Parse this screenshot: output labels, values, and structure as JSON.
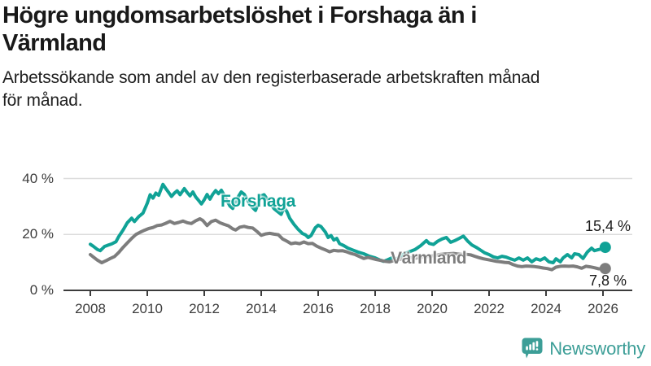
{
  "header": {
    "title_lines": [
      "Högre ungdomsarbetslöshet i Forshaga än i",
      "Värmland"
    ],
    "subtitle_lines": [
      "Arbetssökande som andel av den registerbaserade arbetskraften månad",
      "för månad."
    ]
  },
  "footer": {
    "brand": "Newsworthy",
    "brand_color": "#3c9e97"
  },
  "chart_data": {
    "type": "line",
    "title": "Högre ungdomsarbetslöshet i Forshaga än i Värmland",
    "subtitle": "Arbetssökande som andel av den registerbaserade arbetskraften månad för månad.",
    "unit": "%",
    "grid": true,
    "legend_position": "inline-labels",
    "x_axis": {
      "ticks": [
        2008,
        2010,
        2012,
        2014,
        2016,
        2018,
        2020,
        2022,
        2024,
        2026
      ],
      "range": [
        2008,
        2026.2
      ]
    },
    "y_axis": {
      "ticks": [
        {
          "value": 0,
          "label": "0 %"
        },
        {
          "value": 20,
          "label": "20 %"
        },
        {
          "value": 40,
          "label": "40 %"
        }
      ],
      "range": [
        0,
        43
      ]
    },
    "colors": {
      "axis": "#3c3c3c",
      "grid": "#dcdcdc"
    },
    "series": [
      {
        "name": "Forshaga",
        "color": "#10a296",
        "end_label": "15,4 %",
        "end_value": 15.4,
        "points": [
          [
            2008.0,
            16.5
          ],
          [
            2008.1,
            15.8
          ],
          [
            2008.25,
            14.6
          ],
          [
            2008.35,
            14.2
          ],
          [
            2008.5,
            15.7
          ],
          [
            2008.6,
            16.1
          ],
          [
            2008.75,
            16.6
          ],
          [
            2008.9,
            17.4
          ],
          [
            2009.0,
            19.3
          ],
          [
            2009.15,
            21.6
          ],
          [
            2009.3,
            24.2
          ],
          [
            2009.45,
            25.8
          ],
          [
            2009.55,
            24.6
          ],
          [
            2009.7,
            26.4
          ],
          [
            2009.85,
            27.6
          ],
          [
            2010.0,
            31.2
          ],
          [
            2010.1,
            34.2
          ],
          [
            2010.2,
            33.0
          ],
          [
            2010.3,
            34.8
          ],
          [
            2010.4,
            34.0
          ],
          [
            2010.55,
            37.9
          ],
          [
            2010.65,
            36.4
          ],
          [
            2010.75,
            35.0
          ],
          [
            2010.85,
            33.6
          ],
          [
            2010.95,
            34.8
          ],
          [
            2011.05,
            35.6
          ],
          [
            2011.15,
            34.2
          ],
          [
            2011.3,
            36.4
          ],
          [
            2011.4,
            35.0
          ],
          [
            2011.5,
            33.8
          ],
          [
            2011.6,
            35.2
          ],
          [
            2011.7,
            33.4
          ],
          [
            2011.8,
            32.2
          ],
          [
            2011.9,
            30.9
          ],
          [
            2012.0,
            32.4
          ],
          [
            2012.1,
            34.3
          ],
          [
            2012.2,
            32.6
          ],
          [
            2012.3,
            34.4
          ],
          [
            2012.4,
            35.7
          ],
          [
            2012.5,
            34.6
          ],
          [
            2012.6,
            35.8
          ],
          [
            2012.7,
            34.0
          ],
          [
            2012.8,
            32.0
          ],
          [
            2012.9,
            30.2
          ],
          [
            2013.0,
            29.3
          ],
          [
            2013.1,
            31.4
          ],
          [
            2013.2,
            33.6
          ],
          [
            2013.3,
            35.2
          ],
          [
            2013.4,
            34.4
          ],
          [
            2013.5,
            32.6
          ],
          [
            2013.6,
            30.8
          ],
          [
            2013.7,
            29.6
          ],
          [
            2013.8,
            28.6
          ],
          [
            2013.9,
            31.2
          ],
          [
            2014.0,
            33.8
          ],
          [
            2014.1,
            34.2
          ],
          [
            2014.2,
            32.8
          ],
          [
            2014.3,
            31.4
          ],
          [
            2014.45,
            29.2
          ],
          [
            2014.6,
            28.0
          ],
          [
            2014.7,
            27.2
          ],
          [
            2014.8,
            29.6
          ],
          [
            2014.9,
            28.2
          ],
          [
            2015.0,
            25.8
          ],
          [
            2015.15,
            23.6
          ],
          [
            2015.3,
            21.8
          ],
          [
            2015.45,
            20.3
          ],
          [
            2015.55,
            19.9
          ],
          [
            2015.65,
            18.9
          ],
          [
            2015.75,
            19.6
          ],
          [
            2015.9,
            22.4
          ],
          [
            2016.0,
            23.3
          ],
          [
            2016.1,
            22.8
          ],
          [
            2016.25,
            20.9
          ],
          [
            2016.35,
            18.9
          ],
          [
            2016.45,
            19.6
          ],
          [
            2016.55,
            18.0
          ],
          [
            2016.65,
            18.6
          ],
          [
            2016.75,
            16.7
          ],
          [
            2016.9,
            16.0
          ],
          [
            2017.05,
            15.1
          ],
          [
            2017.2,
            14.5
          ],
          [
            2017.4,
            13.7
          ],
          [
            2017.6,
            13.1
          ],
          [
            2017.8,
            12.2
          ],
          [
            2018.0,
            11.6
          ],
          [
            2018.15,
            10.9
          ],
          [
            2018.3,
            10.4
          ],
          [
            2018.45,
            11.0
          ],
          [
            2018.6,
            11.7
          ],
          [
            2018.75,
            11.2
          ],
          [
            2018.9,
            12.4
          ],
          [
            2019.05,
            13.2
          ],
          [
            2019.2,
            13.8
          ],
          [
            2019.4,
            14.6
          ],
          [
            2019.6,
            16.0
          ],
          [
            2019.8,
            17.8
          ],
          [
            2019.9,
            16.8
          ],
          [
            2020.05,
            16.4
          ],
          [
            2020.2,
            17.6
          ],
          [
            2020.35,
            18.4
          ],
          [
            2020.5,
            18.9
          ],
          [
            2020.65,
            17.2
          ],
          [
            2020.8,
            17.8
          ],
          [
            2020.95,
            18.6
          ],
          [
            2021.1,
            19.4
          ],
          [
            2021.25,
            17.6
          ],
          [
            2021.4,
            16.2
          ],
          [
            2021.55,
            15.4
          ],
          [
            2021.7,
            14.4
          ],
          [
            2021.85,
            13.4
          ],
          [
            2022.0,
            12.8
          ],
          [
            2022.15,
            12.0
          ],
          [
            2022.3,
            11.6
          ],
          [
            2022.45,
            12.2
          ],
          [
            2022.6,
            11.9
          ],
          [
            2022.75,
            11.3
          ],
          [
            2022.9,
            10.8
          ],
          [
            2023.05,
            11.6
          ],
          [
            2023.2,
            10.8
          ],
          [
            2023.35,
            11.6
          ],
          [
            2023.5,
            10.2
          ],
          [
            2023.65,
            11.3
          ],
          [
            2023.8,
            10.8
          ],
          [
            2023.95,
            11.6
          ],
          [
            2024.1,
            10.2
          ],
          [
            2024.25,
            9.9
          ],
          [
            2024.35,
            11.3
          ],
          [
            2024.5,
            10.2
          ],
          [
            2024.6,
            11.6
          ],
          [
            2024.75,
            12.8
          ],
          [
            2024.9,
            11.6
          ],
          [
            2025.0,
            13.1
          ],
          [
            2025.15,
            12.8
          ],
          [
            2025.3,
            11.4
          ],
          [
            2025.45,
            13.7
          ],
          [
            2025.6,
            15.1
          ],
          [
            2025.7,
            14.2
          ],
          [
            2025.85,
            14.6
          ],
          [
            2026.0,
            14.9
          ],
          [
            2026.08,
            15.4
          ]
        ]
      },
      {
        "name": "Värmland",
        "color": "#7d7d7d",
        "end_label": "7,8 %",
        "end_value": 7.8,
        "points": [
          [
            2008.0,
            12.8
          ],
          [
            2008.1,
            12.0
          ],
          [
            2008.25,
            10.8
          ],
          [
            2008.4,
            9.9
          ],
          [
            2008.55,
            10.6
          ],
          [
            2008.7,
            11.4
          ],
          [
            2008.85,
            12.1
          ],
          [
            2009.0,
            13.6
          ],
          [
            2009.15,
            15.4
          ],
          [
            2009.3,
            17.0
          ],
          [
            2009.45,
            18.6
          ],
          [
            2009.6,
            20.0
          ],
          [
            2009.75,
            20.8
          ],
          [
            2009.9,
            21.5
          ],
          [
            2010.05,
            22.1
          ],
          [
            2010.2,
            22.5
          ],
          [
            2010.35,
            23.2
          ],
          [
            2010.5,
            23.4
          ],
          [
            2010.65,
            24.0
          ],
          [
            2010.8,
            24.7
          ],
          [
            2010.95,
            23.9
          ],
          [
            2011.1,
            24.3
          ],
          [
            2011.25,
            24.8
          ],
          [
            2011.4,
            24.2
          ],
          [
            2011.55,
            23.9
          ],
          [
            2011.7,
            24.9
          ],
          [
            2011.85,
            25.6
          ],
          [
            2011.95,
            25.0
          ],
          [
            2012.1,
            23.2
          ],
          [
            2012.25,
            24.6
          ],
          [
            2012.4,
            25.1
          ],
          [
            2012.55,
            24.2
          ],
          [
            2012.7,
            23.6
          ],
          [
            2012.85,
            23.1
          ],
          [
            2013.0,
            22.0
          ],
          [
            2013.1,
            21.6
          ],
          [
            2013.25,
            22.6
          ],
          [
            2013.4,
            22.9
          ],
          [
            2013.55,
            22.5
          ],
          [
            2013.7,
            22.3
          ],
          [
            2013.85,
            21.1
          ],
          [
            2014.0,
            19.7
          ],
          [
            2014.15,
            20.2
          ],
          [
            2014.3,
            20.4
          ],
          [
            2014.45,
            20.1
          ],
          [
            2014.6,
            19.9
          ],
          [
            2014.75,
            18.4
          ],
          [
            2014.9,
            17.6
          ],
          [
            2015.05,
            16.7
          ],
          [
            2015.2,
            17.0
          ],
          [
            2015.35,
            16.7
          ],
          [
            2015.5,
            17.3
          ],
          [
            2015.65,
            16.7
          ],
          [
            2015.8,
            16.8
          ],
          [
            2015.95,
            15.8
          ],
          [
            2016.1,
            15.1
          ],
          [
            2016.25,
            14.5
          ],
          [
            2016.4,
            13.8
          ],
          [
            2016.55,
            14.3
          ],
          [
            2016.7,
            14.1
          ],
          [
            2016.85,
            14.2
          ],
          [
            2017.0,
            13.8
          ],
          [
            2017.15,
            13.2
          ],
          [
            2017.3,
            12.8
          ],
          [
            2017.45,
            12.1
          ],
          [
            2017.6,
            11.4
          ],
          [
            2017.75,
            11.8
          ],
          [
            2017.9,
            11.4
          ],
          [
            2018.05,
            11.0
          ],
          [
            2018.2,
            10.7
          ],
          [
            2018.35,
            10.4
          ],
          [
            2018.5,
            10.2
          ],
          [
            2018.65,
            10.6
          ],
          [
            2018.8,
            10.9
          ],
          [
            2018.95,
            11.3
          ],
          [
            2019.1,
            11.4
          ],
          [
            2019.25,
            11.7
          ],
          [
            2019.4,
            11.5
          ],
          [
            2019.55,
            11.8
          ],
          [
            2019.7,
            12.0
          ],
          [
            2019.85,
            12.1
          ],
          [
            2020.0,
            12.3
          ],
          [
            2020.15,
            12.6
          ],
          [
            2020.3,
            12.9
          ],
          [
            2020.45,
            13.0
          ],
          [
            2020.6,
            13.1
          ],
          [
            2020.75,
            13.2
          ],
          [
            2020.9,
            13.0
          ],
          [
            2021.05,
            12.9
          ],
          [
            2021.2,
            12.9
          ],
          [
            2021.35,
            12.7
          ],
          [
            2021.5,
            12.2
          ],
          [
            2021.65,
            11.7
          ],
          [
            2021.8,
            11.3
          ],
          [
            2021.95,
            11.0
          ],
          [
            2022.1,
            10.7
          ],
          [
            2022.25,
            10.4
          ],
          [
            2022.4,
            10.2
          ],
          [
            2022.55,
            10.0
          ],
          [
            2022.7,
            9.9
          ],
          [
            2022.85,
            9.2
          ],
          [
            2023.0,
            8.7
          ],
          [
            2023.15,
            8.5
          ],
          [
            2023.3,
            8.7
          ],
          [
            2023.45,
            8.6
          ],
          [
            2023.6,
            8.5
          ],
          [
            2023.75,
            8.3
          ],
          [
            2023.9,
            8.0
          ],
          [
            2024.05,
            7.8
          ],
          [
            2024.2,
            7.4
          ],
          [
            2024.35,
            8.3
          ],
          [
            2024.5,
            8.6
          ],
          [
            2024.65,
            8.7
          ],
          [
            2024.8,
            8.6
          ],
          [
            2024.95,
            8.7
          ],
          [
            2025.1,
            8.4
          ],
          [
            2025.25,
            7.9
          ],
          [
            2025.4,
            8.6
          ],
          [
            2025.55,
            8.4
          ],
          [
            2025.7,
            8.1
          ],
          [
            2025.85,
            7.7
          ],
          [
            2026.0,
            7.7
          ],
          [
            2026.08,
            7.8
          ]
        ]
      }
    ]
  }
}
